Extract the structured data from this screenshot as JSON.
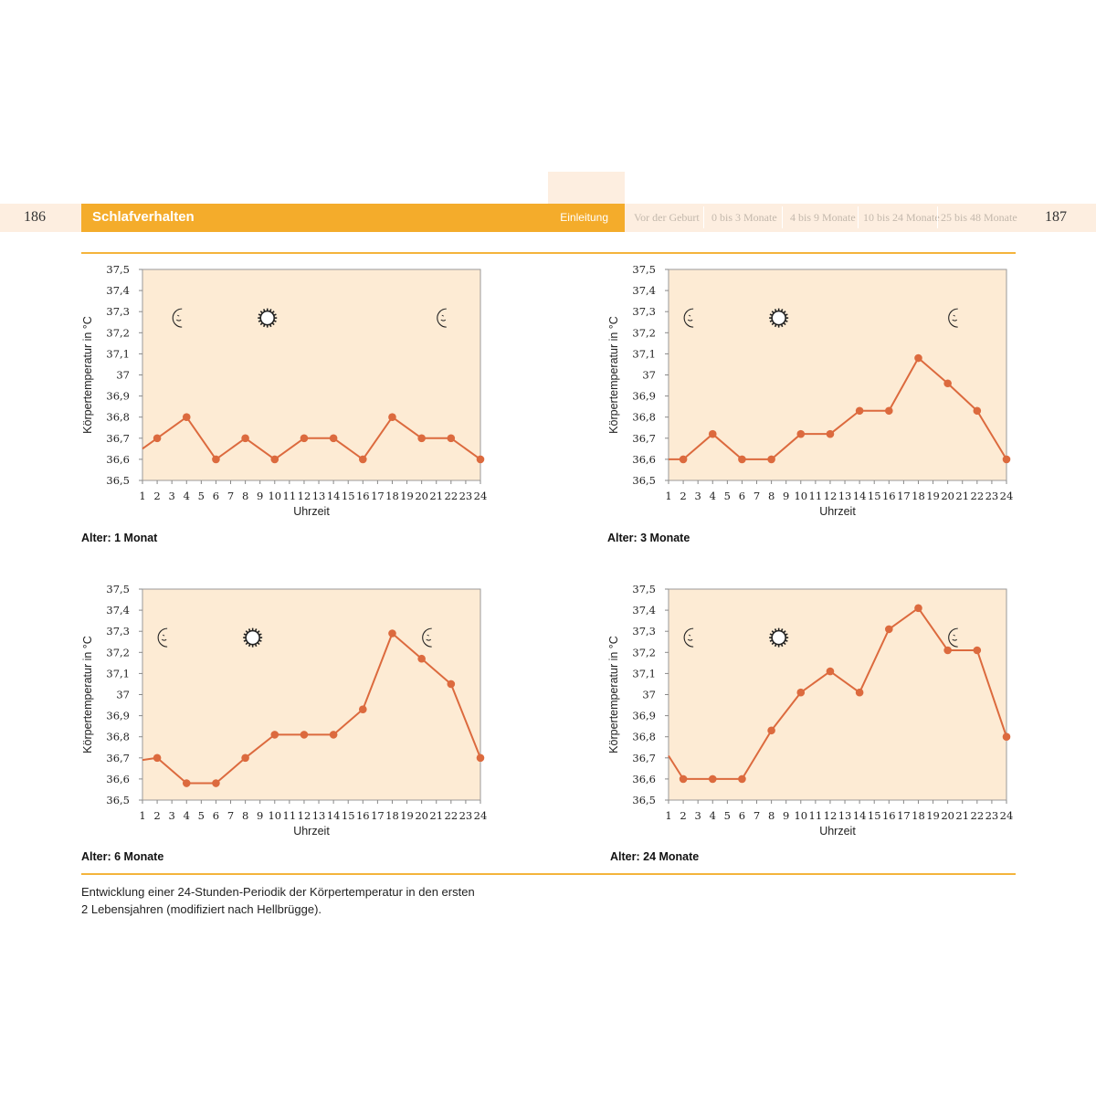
{
  "header": {
    "page_left": "186",
    "page_right": "187",
    "section_title": "Schlafverhalten",
    "active_tab": "Einleitung",
    "tabs": [
      "Vor der Geburt",
      "0 bis 3 Monate",
      "4 bis 9 Monate",
      "10 bis 24 Monate",
      "25 bis 48 Monate"
    ]
  },
  "caption": {
    "line1": "Entwicklung einer 24-Stunden-Periodik der Körpertemperatur in den ersten",
    "line2": "2 Lebensjahren (modifiziert nach Hellbrügge)."
  },
  "colors": {
    "accent": "#f4ac2b",
    "plot_bg": "#fdebd4",
    "series": "#dc6a3e"
  },
  "chart_data": [
    {
      "type": "line",
      "age_label": "Alter: 1 Monat",
      "xlabel": "Uhrzeit",
      "ylabel": "Körpertemperatur in °C",
      "ylim": [
        36.5,
        37.5
      ],
      "x_ticks": [
        1,
        2,
        3,
        4,
        5,
        6,
        7,
        8,
        9,
        10,
        11,
        12,
        13,
        14,
        15,
        16,
        17,
        18,
        19,
        20,
        21,
        22,
        23,
        24
      ],
      "y_ticks": [
        "36,5",
        "36,6",
        "36,7",
        "36,8",
        "36,9",
        "37",
        "37,1",
        "37,2",
        "37,3",
        "37,4",
        "37,5"
      ],
      "series_start_value": 36.65,
      "x": [
        2,
        4,
        6,
        8,
        10,
        12,
        14,
        16,
        18,
        20,
        22,
        24
      ],
      "values": [
        36.7,
        36.8,
        36.6,
        36.7,
        36.6,
        36.7,
        36.7,
        36.6,
        36.8,
        36.7,
        36.7,
        36.6
      ],
      "symbols": [
        {
          "icon": "moon-icon",
          "hour": 3.5
        },
        {
          "icon": "sun-icon",
          "hour": 9.5
        },
        {
          "icon": "moon-icon",
          "hour": 21.5
        }
      ]
    },
    {
      "type": "line",
      "age_label": "Alter: 3 Monate",
      "xlabel": "Uhrzeit",
      "ylabel": "Körpertemperatur in °C",
      "ylim": [
        36.5,
        37.5
      ],
      "x_ticks": [
        1,
        2,
        3,
        4,
        5,
        6,
        7,
        8,
        9,
        10,
        11,
        12,
        13,
        14,
        15,
        16,
        17,
        18,
        19,
        20,
        21,
        22,
        23,
        24
      ],
      "y_ticks": [
        "36,5",
        "36,6",
        "36,7",
        "36,8",
        "36,9",
        "37",
        "37,1",
        "37,2",
        "37,3",
        "37,4",
        "37,5"
      ],
      "series_start_value": 36.6,
      "x": [
        2,
        4,
        6,
        8,
        10,
        12,
        14,
        16,
        18,
        20,
        22,
        24
      ],
      "values": [
        36.6,
        36.72,
        36.6,
        36.6,
        36.72,
        36.72,
        36.83,
        36.83,
        37.08,
        36.96,
        36.83,
        36.6
      ],
      "symbols": [
        {
          "icon": "moon-icon",
          "hour": 2.5
        },
        {
          "icon": "sun-icon",
          "hour": 8.5
        },
        {
          "icon": "moon-icon",
          "hour": 20.5
        }
      ]
    },
    {
      "type": "line",
      "age_label": "Alter: 6 Monate",
      "xlabel": "Uhrzeit",
      "ylabel": "Körpertemperatur in °C",
      "ylim": [
        36.5,
        37.5
      ],
      "x_ticks": [
        1,
        2,
        3,
        4,
        5,
        6,
        7,
        8,
        9,
        10,
        11,
        12,
        13,
        14,
        15,
        16,
        17,
        18,
        19,
        20,
        21,
        22,
        23,
        24
      ],
      "y_ticks": [
        "36,5",
        "36,6",
        "36,7",
        "36,8",
        "36,9",
        "37",
        "37,1",
        "37,2",
        "37,3",
        "37,4",
        "37,5"
      ],
      "series_start_value": 36.69,
      "x": [
        2,
        4,
        6,
        8,
        10,
        12,
        14,
        16,
        18,
        20,
        22,
        24
      ],
      "values": [
        36.7,
        36.58,
        36.58,
        36.7,
        36.81,
        36.81,
        36.81,
        36.93,
        37.29,
        37.17,
        37.05,
        36.7
      ],
      "symbols": [
        {
          "icon": "moon-icon",
          "hour": 2.5
        },
        {
          "icon": "sun-icon",
          "hour": 8.5
        },
        {
          "icon": "moon-icon",
          "hour": 20.5
        }
      ]
    },
    {
      "type": "line",
      "age_label": "Alter: 24 Monate",
      "xlabel": "Uhrzeit",
      "ylabel": "Körpertemperatur in °C",
      "ylim": [
        36.5,
        37.5
      ],
      "x_ticks": [
        1,
        2,
        3,
        4,
        5,
        6,
        7,
        8,
        9,
        10,
        11,
        12,
        13,
        14,
        15,
        16,
        17,
        18,
        19,
        20,
        21,
        22,
        23,
        24
      ],
      "y_ticks": [
        "36,5",
        "36,6",
        "36,7",
        "36,8",
        "36,9",
        "37",
        "37,1",
        "37,2",
        "37,3",
        "37,4",
        "37,5"
      ],
      "series_start_value": 36.71,
      "x": [
        2,
        4,
        6,
        8,
        10,
        12,
        14,
        16,
        18,
        20,
        22,
        24
      ],
      "values": [
        36.6,
        36.6,
        36.6,
        36.83,
        37.01,
        37.11,
        37.01,
        37.31,
        37.41,
        37.21,
        37.21,
        36.8
      ],
      "symbols": [
        {
          "icon": "moon-icon",
          "hour": 2.5
        },
        {
          "icon": "sun-icon",
          "hour": 8.5
        },
        {
          "icon": "moon-icon",
          "hour": 20.5
        }
      ]
    }
  ]
}
